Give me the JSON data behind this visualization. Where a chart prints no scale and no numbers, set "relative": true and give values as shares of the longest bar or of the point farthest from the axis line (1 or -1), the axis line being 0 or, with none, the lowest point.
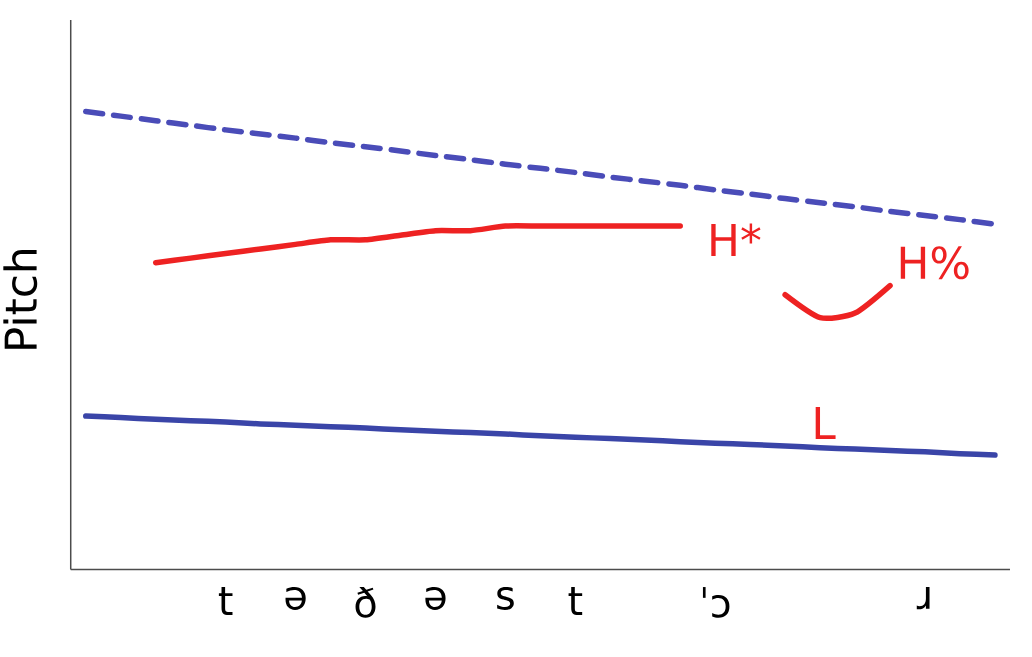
{
  "chart_data": {
    "type": "line",
    "relative": true,
    "ylabel": "Pitch",
    "legend": false,
    "grid": false,
    "tick_labels": "x",
    "categories": [
      null,
      null,
      null,
      null,
      "t",
      null,
      "ə",
      null,
      "ð",
      null,
      "ə",
      null,
      "s",
      null,
      "t",
      null,
      null,
      null,
      "ˈɔ",
      null,
      null,
      null,
      null,
      null,
      "ɹ",
      null,
      null
    ],
    "series": [
      {
        "color": "#4a4cb8",
        "line_style": "dashed",
        "values": [
          1.0,
          0.99,
          0.98,
          0.97,
          0.96,
          0.951,
          0.942,
          0.932,
          0.923,
          0.914,
          0.904,
          0.895,
          0.885,
          0.876,
          0.867,
          0.857,
          0.848,
          0.839,
          0.829,
          0.82,
          0.81,
          0.801,
          0.792,
          0.782,
          0.773,
          0.764,
          0.754
        ]
      },
      {
        "color": "#ee2222",
        "line_style": "solid",
        "values": [
          null,
          null,
          0.67,
          0.68,
          0.69,
          0.7,
          0.71,
          0.72,
          0.72,
          0.73,
          0.74,
          0.74,
          0.75,
          0.75,
          0.75,
          0.75,
          0.75,
          0.75,
          null,
          null,
          0.6,
          0.55,
          0.56,
          0.62,
          null,
          null,
          null
        ]
      },
      {
        "color": "#3a45a8",
        "line_style": "solid",
        "values": [
          0.335,
          0.332,
          0.328,
          0.325,
          0.322,
          0.318,
          0.315,
          0.312,
          0.309,
          0.305,
          0.302,
          0.299,
          0.296,
          0.292,
          0.289,
          0.286,
          0.283,
          0.279,
          0.276,
          0.273,
          0.27,
          0.266,
          0.263,
          0.26,
          0.257,
          0.253,
          0.25
        ]
      }
    ],
    "annotations": [
      "H*",
      "H%",
      "L"
    ]
  }
}
